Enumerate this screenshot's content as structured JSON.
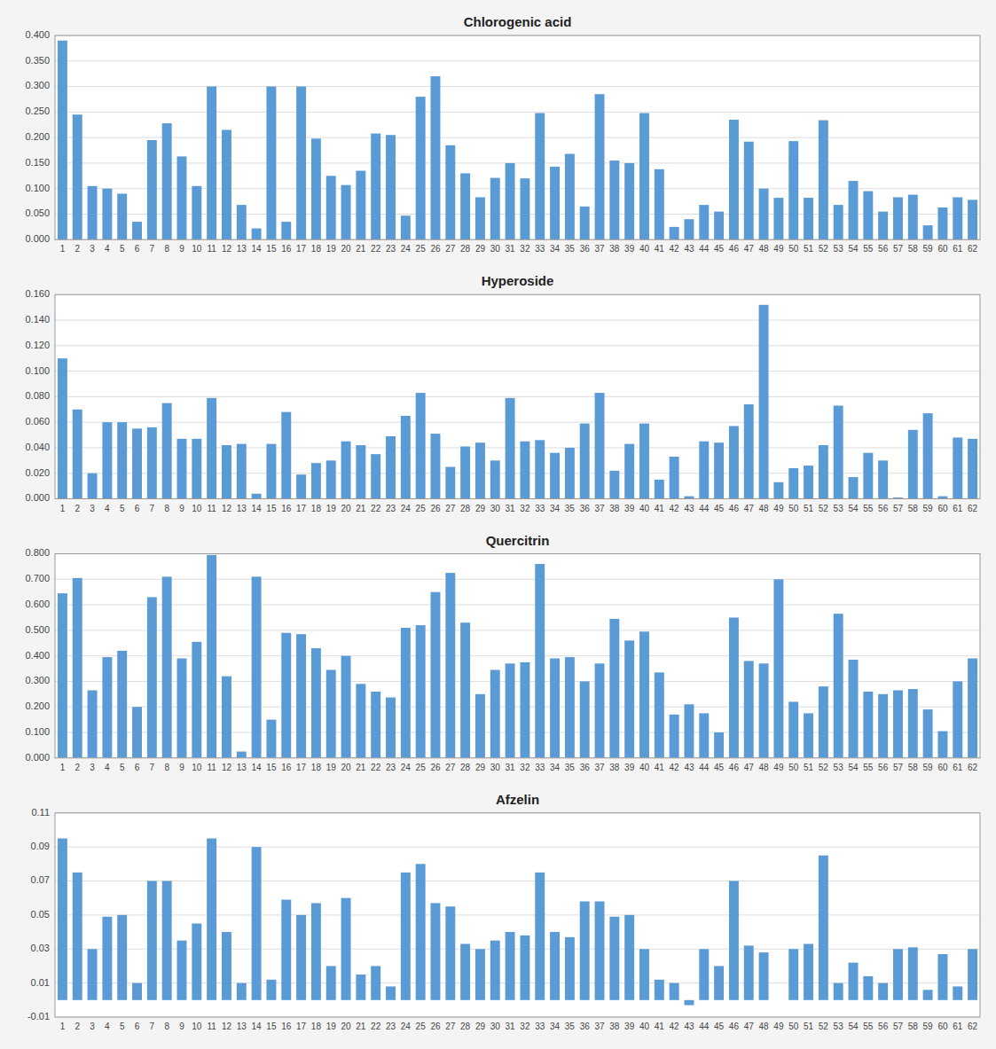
{
  "chart_data": [
    {
      "type": "bar",
      "title": "Chlorogenic acid",
      "categories": [
        1,
        2,
        3,
        4,
        5,
        6,
        7,
        8,
        9,
        10,
        11,
        12,
        13,
        14,
        15,
        16,
        17,
        18,
        19,
        20,
        21,
        22,
        23,
        24,
        25,
        26,
        27,
        28,
        29,
        30,
        31,
        32,
        33,
        34,
        35,
        36,
        37,
        38,
        39,
        40,
        41,
        42,
        43,
        44,
        45,
        46,
        47,
        48,
        49,
        50,
        51,
        52,
        53,
        54,
        55,
        56,
        57,
        58,
        59,
        60,
        61,
        62
      ],
      "values": [
        0.39,
        0.245,
        0.105,
        0.1,
        0.09,
        0.035,
        0.195,
        0.228,
        0.163,
        0.105,
        0.3,
        0.215,
        0.068,
        0.022,
        0.3,
        0.035,
        0.3,
        0.198,
        0.125,
        0.107,
        0.135,
        0.208,
        0.205,
        0.047,
        0.28,
        0.32,
        0.185,
        0.13,
        0.083,
        0.121,
        0.15,
        0.12,
        0.248,
        0.143,
        0.168,
        0.065,
        0.285,
        0.155,
        0.15,
        0.248,
        0.138,
        0.025,
        0.04,
        0.068,
        0.055,
        0.235,
        0.192,
        0.1,
        0.082,
        0.193,
        0.082,
        0.234,
        0.068,
        0.115,
        0.095,
        0.055,
        0.083,
        0.088,
        0.028,
        0.063,
        0.083,
        0.078
      ],
      "color": "#5b9bd5",
      "ylim": [
        0.0,
        0.4
      ],
      "yticks": [
        {
          "value": 0.0,
          "label": "0.000"
        },
        {
          "value": 0.05,
          "label": "0.050"
        },
        {
          "value": 0.1,
          "label": "0.100"
        },
        {
          "value": 0.15,
          "label": "0.150"
        },
        {
          "value": 0.2,
          "label": "0.200"
        },
        {
          "value": 0.25,
          "label": "0.250"
        },
        {
          "value": 0.3,
          "label": "0.300"
        },
        {
          "value": 0.35,
          "label": "0.350"
        },
        {
          "value": 0.4,
          "label": "0.400"
        }
      ],
      "grid": true
    },
    {
      "type": "bar",
      "title": "Hyperoside",
      "categories": [
        1,
        2,
        3,
        4,
        5,
        6,
        7,
        8,
        9,
        10,
        11,
        12,
        13,
        14,
        15,
        16,
        17,
        18,
        19,
        20,
        21,
        22,
        23,
        24,
        25,
        26,
        27,
        28,
        29,
        30,
        31,
        32,
        33,
        34,
        35,
        36,
        37,
        38,
        39,
        40,
        41,
        42,
        43,
        44,
        45,
        46,
        47,
        48,
        49,
        50,
        51,
        52,
        53,
        54,
        55,
        56,
        57,
        58,
        59,
        60,
        61,
        62
      ],
      "values": [
        0.11,
        0.07,
        0.02,
        0.06,
        0.06,
        0.055,
        0.056,
        0.075,
        0.047,
        0.047,
        0.079,
        0.042,
        0.043,
        0.004,
        0.043,
        0.068,
        0.019,
        0.028,
        0.03,
        0.045,
        0.042,
        0.035,
        0.049,
        0.065,
        0.083,
        0.051,
        0.025,
        0.041,
        0.044,
        0.03,
        0.079,
        0.045,
        0.046,
        0.036,
        0.04,
        0.059,
        0.083,
        0.022,
        0.043,
        0.059,
        0.015,
        0.033,
        0.002,
        0.045,
        0.044,
        0.057,
        0.074,
        0.152,
        0.013,
        0.024,
        0.026,
        0.042,
        0.073,
        0.017,
        0.036,
        0.03,
        0.001,
        0.054,
        0.067,
        0.002,
        0.048,
        0.047
      ],
      "color": "#5b9bd5",
      "ylim": [
        0.0,
        0.16
      ],
      "yticks": [
        {
          "value": 0.0,
          "label": "0.000"
        },
        {
          "value": 0.02,
          "label": "0.020"
        },
        {
          "value": 0.04,
          "label": "0.040"
        },
        {
          "value": 0.06,
          "label": "0.060"
        },
        {
          "value": 0.08,
          "label": "0.080"
        },
        {
          "value": 0.1,
          "label": "0.100"
        },
        {
          "value": 0.12,
          "label": "0.120"
        },
        {
          "value": 0.14,
          "label": "0.140"
        },
        {
          "value": 0.16,
          "label": "0.160"
        }
      ],
      "grid": true
    },
    {
      "type": "bar",
      "title": "Quercitrin",
      "categories": [
        1,
        2,
        3,
        4,
        5,
        6,
        7,
        8,
        9,
        10,
        11,
        12,
        13,
        14,
        15,
        16,
        17,
        18,
        19,
        20,
        21,
        22,
        23,
        24,
        25,
        26,
        27,
        28,
        29,
        30,
        31,
        32,
        33,
        34,
        35,
        36,
        37,
        38,
        39,
        40,
        41,
        42,
        43,
        44,
        45,
        46,
        47,
        48,
        49,
        50,
        51,
        52,
        53,
        54,
        55,
        56,
        57,
        58,
        59,
        60,
        61,
        62
      ],
      "values": [
        0.645,
        0.705,
        0.265,
        0.395,
        0.42,
        0.2,
        0.63,
        0.71,
        0.39,
        0.455,
        0.795,
        0.32,
        0.025,
        0.71,
        0.15,
        0.49,
        0.485,
        0.43,
        0.345,
        0.4,
        0.29,
        0.26,
        0.237,
        0.51,
        0.52,
        0.65,
        0.725,
        0.53,
        0.25,
        0.345,
        0.37,
        0.375,
        0.76,
        0.39,
        0.395,
        0.3,
        0.37,
        0.545,
        0.46,
        0.495,
        0.335,
        0.17,
        0.21,
        0.175,
        0.1,
        0.55,
        0.38,
        0.37,
        0.7,
        0.22,
        0.175,
        0.28,
        0.565,
        0.385,
        0.26,
        0.25,
        0.265,
        0.27,
        0.19,
        0.105,
        0.3,
        0.39
      ],
      "color": "#5b9bd5",
      "ylim": [
        0.0,
        0.8
      ],
      "yticks": [
        {
          "value": 0.0,
          "label": "0.000"
        },
        {
          "value": 0.1,
          "label": "0.100"
        },
        {
          "value": 0.2,
          "label": "0.200"
        },
        {
          "value": 0.3,
          "label": "0.300"
        },
        {
          "value": 0.4,
          "label": "0.400"
        },
        {
          "value": 0.5,
          "label": "0.500"
        },
        {
          "value": 0.6,
          "label": "0.600"
        },
        {
          "value": 0.7,
          "label": "0.700"
        },
        {
          "value": 0.8,
          "label": "0.800"
        }
      ],
      "grid": true
    },
    {
      "type": "bar",
      "title": "Afzelin",
      "categories": [
        1,
        2,
        3,
        4,
        5,
        6,
        7,
        8,
        9,
        10,
        11,
        12,
        13,
        14,
        15,
        16,
        17,
        18,
        19,
        20,
        21,
        22,
        23,
        24,
        25,
        26,
        27,
        28,
        29,
        30,
        31,
        32,
        33,
        34,
        35,
        36,
        37,
        38,
        39,
        40,
        41,
        42,
        43,
        44,
        45,
        46,
        47,
        48,
        49,
        50,
        51,
        52,
        53,
        54,
        55,
        56,
        57,
        58,
        59,
        60,
        61,
        62
      ],
      "values": [
        0.095,
        0.075,
        0.03,
        0.049,
        0.05,
        0.01,
        0.07,
        0.07,
        0.035,
        0.045,
        0.095,
        0.04,
        0.01,
        0.09,
        0.012,
        0.059,
        0.05,
        0.057,
        0.02,
        0.06,
        0.015,
        0.02,
        0.008,
        0.075,
        0.08,
        0.057,
        0.055,
        0.033,
        0.03,
        0.035,
        0.04,
        0.038,
        0.075,
        0.04,
        0.037,
        0.058,
        0.058,
        0.049,
        0.05,
        0.03,
        0.012,
        0.01,
        -0.003,
        0.03,
        0.02,
        0.07,
        0.032,
        0.028,
        0.0,
        0.03,
        0.033,
        0.085,
        0.01,
        0.022,
        0.014,
        0.01,
        0.03,
        0.031,
        0.006,
        0.027,
        0.008,
        0.03
      ],
      "color": "#5b9bd5",
      "ylim": [
        -0.01,
        0.11
      ],
      "yticks": [
        -0.01,
        0.01,
        0.03,
        0.05,
        0.07,
        0.09,
        0.11
      ],
      "grid": true
    }
  ]
}
